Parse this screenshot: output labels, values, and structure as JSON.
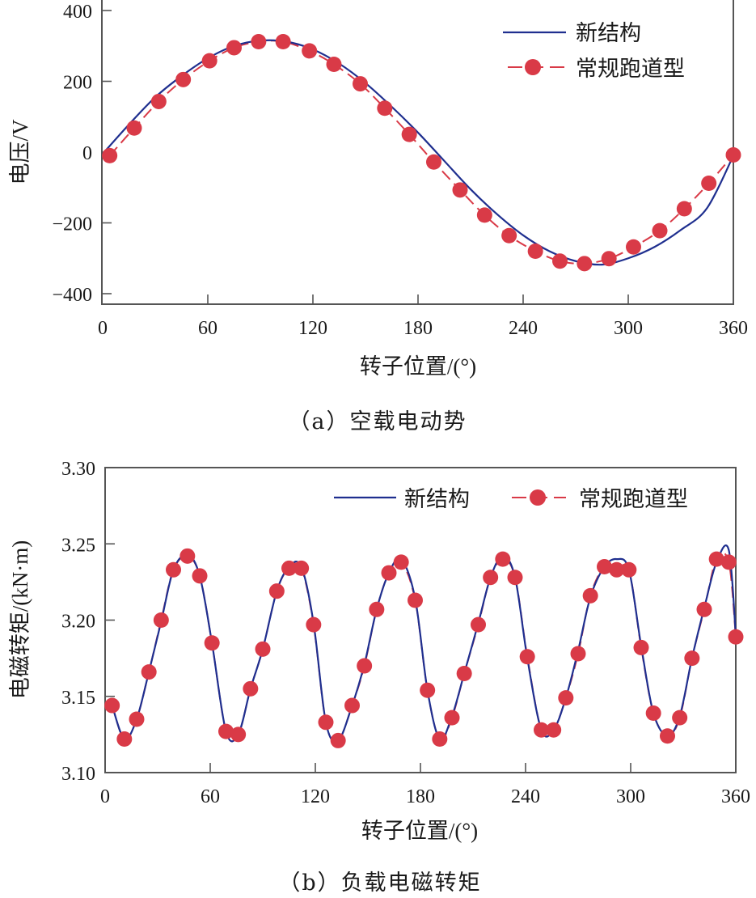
{
  "colors": {
    "new_structure": "#1f2f8f",
    "conventional": "#d93a47",
    "axis": "#555555",
    "text": "#1a1a1a"
  },
  "chart_data": [
    {
      "id": "a",
      "type": "line",
      "title": "",
      "caption": "（a）空载电动势",
      "xlabel": "转子位置/(°)",
      "ylabel": "电压/V",
      "xlim": [
        0,
        360
      ],
      "ylim": [
        -400,
        400
      ],
      "xticks": [
        0,
        60,
        120,
        180,
        240,
        300,
        360
      ],
      "yticks": [
        -400,
        -200,
        0,
        200,
        400
      ],
      "ytick_labels": [
        "−400",
        "−200",
        "0",
        "200",
        "400"
      ],
      "grid": false,
      "legend_position": "upper right",
      "legend_layout": "vertical",
      "series": [
        {
          "name": "新结构",
          "style": "solid line",
          "x": [
            0,
            15,
            30,
            45,
            60,
            75,
            90,
            105,
            120,
            135,
            150,
            165,
            180,
            195,
            210,
            225,
            240,
            255,
            270,
            285,
            300,
            315,
            330,
            345,
            360
          ],
          "values": [
            -5,
            78,
            155,
            215,
            265,
            300,
            315,
            312,
            290,
            250,
            195,
            128,
            55,
            -25,
            -105,
            -175,
            -235,
            -280,
            -308,
            -318,
            -300,
            -268,
            -220,
            -158,
            -10
          ]
        },
        {
          "name": "常规跑道型",
          "style": "dashed line with circle markers",
          "x": [
            4,
            18,
            32,
            46,
            61,
            75,
            89,
            103,
            118,
            132,
            147,
            161,
            175,
            189,
            204,
            218,
            232,
            247,
            261,
            275,
            289,
            303,
            318,
            332,
            346,
            360
          ],
          "values": [
            -10,
            68,
            143,
            205,
            258,
            295,
            312,
            312,
            286,
            248,
            193,
            124,
            50,
            -28,
            -107,
            -178,
            -236,
            -280,
            -308,
            -315,
            -301,
            -268,
            -222,
            -160,
            -88,
            -8
          ]
        }
      ]
    },
    {
      "id": "b",
      "type": "line",
      "title": "",
      "caption": "（b）负载电磁转矩",
      "xlabel": "转子位置/(°)",
      "ylabel": "电磁转矩/(kN·m)",
      "xlim": [
        0,
        360
      ],
      "ylim": [
        3.1,
        3.3
      ],
      "xticks": [
        0,
        60,
        120,
        180,
        240,
        300,
        360
      ],
      "yticks": [
        3.1,
        3.15,
        3.2,
        3.25,
        3.3
      ],
      "ytick_labels": [
        "3.10",
        "3.15",
        "3.20",
        "3.25",
        "3.30"
      ],
      "grid": false,
      "legend_position": "upper right",
      "legend_layout": "horizontal",
      "series": [
        {
          "name": "新结构",
          "style": "solid line",
          "x": [
            4,
            11,
            18,
            25,
            32,
            39,
            47,
            54,
            61,
            69,
            76,
            83,
            90,
            98,
            105,
            112,
            119,
            126,
            133,
            141,
            148,
            155,
            162,
            169,
            177,
            184,
            191,
            198,
            205,
            213,
            220,
            227,
            234,
            241,
            249,
            256,
            263,
            270,
            277,
            285,
            292,
            299,
            306,
            313,
            321,
            328,
            335,
            342,
            349,
            356,
            360
          ],
          "values": [
            3.144,
            3.122,
            3.135,
            3.166,
            3.199,
            3.233,
            3.243,
            3.229,
            3.185,
            3.127,
            3.125,
            3.155,
            3.181,
            3.219,
            3.235,
            3.235,
            3.198,
            3.133,
            3.121,
            3.144,
            3.171,
            3.207,
            3.231,
            3.24,
            3.214,
            3.154,
            3.122,
            3.137,
            3.165,
            3.198,
            3.228,
            3.242,
            3.228,
            3.175,
            3.128,
            3.128,
            3.149,
            3.18,
            3.215,
            3.235,
            3.24,
            3.233,
            3.183,
            3.139,
            3.124,
            3.137,
            3.175,
            3.208,
            3.238,
            3.246,
            3.19
          ]
        },
        {
          "name": "常规跑道型",
          "style": "dashed line with circle markers",
          "x": [
            4,
            11,
            18,
            25,
            32,
            39,
            47,
            54,
            61,
            69,
            76,
            83,
            90,
            98,
            105,
            112,
            119,
            126,
            133,
            141,
            148,
            155,
            162,
            169,
            177,
            184,
            191,
            198,
            205,
            213,
            220,
            227,
            234,
            241,
            249,
            256,
            263,
            270,
            277,
            285,
            292,
            299,
            306,
            313,
            321,
            328,
            335,
            342,
            349,
            356,
            360
          ],
          "values": [
            3.144,
            3.122,
            3.135,
            3.166,
            3.2,
            3.233,
            3.242,
            3.229,
            3.185,
            3.127,
            3.125,
            3.155,
            3.181,
            3.219,
            3.234,
            3.234,
            3.197,
            3.133,
            3.121,
            3.144,
            3.17,
            3.207,
            3.231,
            3.238,
            3.213,
            3.154,
            3.122,
            3.136,
            3.165,
            3.197,
            3.228,
            3.24,
            3.228,
            3.176,
            3.128,
            3.128,
            3.149,
            3.178,
            3.216,
            3.235,
            3.233,
            3.233,
            3.182,
            3.139,
            3.124,
            3.136,
            3.175,
            3.207,
            3.24,
            3.238,
            3.189
          ]
        }
      ]
    }
  ],
  "figure": {
    "panel_a": {
      "legend": {
        "new_label": "新结构",
        "conv_label": "常规跑道型"
      },
      "xlabel": "转子位置/(°)",
      "ylabel": "电压/V",
      "caption": "（a）空载电动势"
    },
    "panel_b": {
      "legend": {
        "new_label": "新结构",
        "conv_label": "常规跑道型"
      },
      "xlabel": "转子位置/(°)",
      "ylabel": "电磁转矩/(kN·m)",
      "caption": "（b）负载电磁转矩"
    }
  }
}
